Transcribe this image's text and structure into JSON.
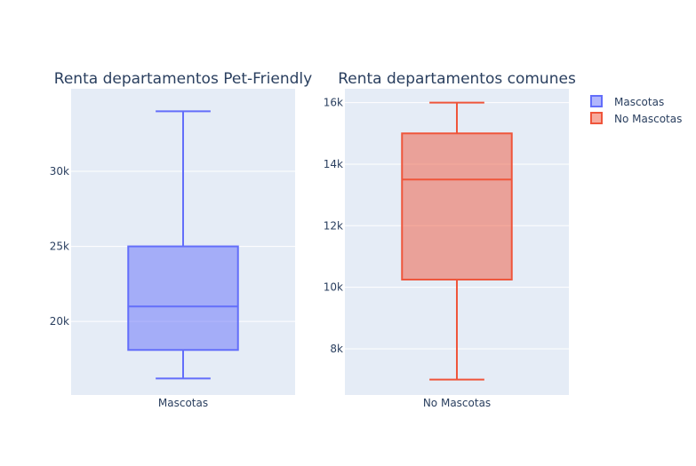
{
  "chart_data": [
    {
      "type": "box",
      "title": "Renta departamentos Pet-Friendly",
      "categories": [
        "Mascotas"
      ],
      "series": [
        {
          "name": "Mascotas",
          "min": 16200,
          "q1": 18100,
          "median": 21000,
          "q3": 25000,
          "max": 34000
        }
      ],
      "ylim": [
        15100,
        35500
      ],
      "yticks": [
        20000,
        25000,
        30000
      ],
      "ytick_labels": [
        "20k",
        "25k",
        "30k"
      ],
      "grid": true,
      "color": "#636efa"
    },
    {
      "type": "box",
      "title": "Renta departamentos comunes",
      "categories": [
        "No Mascotas"
      ],
      "series": [
        {
          "name": "No Mascotas",
          "min": 7000,
          "q1": 10250,
          "median": 13500,
          "q3": 15000,
          "max": 16000
        }
      ],
      "ylim": [
        6500,
        16450
      ],
      "yticks": [
        8000,
        10000,
        12000,
        14000,
        16000
      ],
      "ytick_labels": [
        "8k",
        "10k",
        "12k",
        "14k",
        "16k"
      ],
      "grid": true,
      "color": "#ef553b"
    }
  ],
  "legend": {
    "position": "top-right",
    "items": [
      {
        "label": "Mascotas",
        "color": "#636efa"
      },
      {
        "label": "No Mascotas",
        "color": "#ef553b"
      }
    ]
  }
}
